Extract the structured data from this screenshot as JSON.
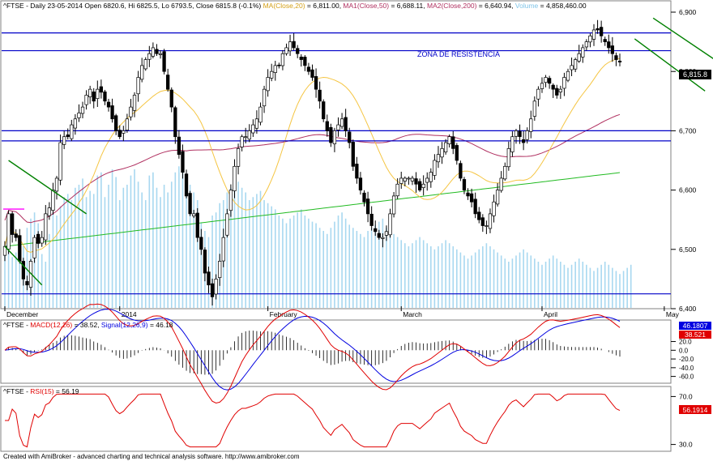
{
  "header": {
    "prefix": "^FTSE - Daily 23-05-2014 Open 6820.6, Hi 6825.5, Lo 6793.5, Close 6815.8 (-0.1%) ",
    "ma20": "MA(Close,20)",
    "ma20_val": " = 6,811.00, ",
    "ma50": "MA1(Close,50)",
    "ma50_val": " = 6,688.11, ",
    "ma200": "MA2(Close,200)",
    "ma200_val": " = 6,640.94, ",
    "volume": "Volume",
    "volume_val": " = 4,858,460.00"
  },
  "annotation": "ZONA DE RESISTÊNCIA",
  "last_price_label": "6,815.8",
  "macd_header": {
    "prefix": "^FTSE - ",
    "macd": "MACD(12,26)",
    "macd_val": " = 38.52, ",
    "signal": "Signal(12,26,9)",
    "signal_val": " = 46.18"
  },
  "macd_last": {
    "signal": "46.1807",
    "macd": "38.521"
  },
  "rsi_header": {
    "prefix": "^FTSE - ",
    "rsi": "RSI(15)",
    "rsi_val": " = 56.19"
  },
  "rsi_last": "56.1914",
  "footer": "Created with AmiBroker - advanced charting and technical analysis software. http://www.amibroker.com",
  "colors": {
    "up_candle": "#ffffff",
    "down_candle": "#000000",
    "ma20": "#f5c542",
    "ma50": "#b03060",
    "ma200": "#22bb22",
    "volume": "#a8d8f0",
    "hline": "#0000c8",
    "trend_green": "#008000",
    "magenta": "#ff00ff",
    "macd": "#e00000",
    "signal": "#0000e0",
    "rsi": "#e00000"
  },
  "chart_data": [
    {
      "type": "candlestick",
      "name": "price",
      "ylim": [
        6400,
        6900
      ],
      "y_ticks": [
        "6,400",
        "6,500",
        "6,600",
        "6,700",
        "6,800",
        "6,900"
      ],
      "x_tick_labels": [
        "December",
        "2014",
        "February",
        "March",
        "April",
        "May"
      ],
      "horizontal_levels": [
        6865,
        6835,
        6700,
        6683,
        6425
      ],
      "magenta_level": 6568,
      "trend_lines": [
        {
          "from": [
            1,
            6650
          ],
          "to": [
            22,
            6560
          ]
        },
        {
          "from": [
            0,
            6505
          ],
          "to": [
            10,
            6440
          ]
        },
        {
          "from": [
            175,
            6890
          ],
          "to": [
            194,
            6810
          ]
        },
        {
          "from": [
            170,
            6855
          ],
          "to": [
            189,
            6767
          ]
        }
      ],
      "close": [
        6505,
        6560,
        6525,
        6520,
        6480,
        6450,
        6440,
        6480,
        6520,
        6510,
        6520,
        6560,
        6570,
        6600,
        6620,
        6680,
        6690,
        6690,
        6710,
        6720,
        6730,
        6740,
        6760,
        6770,
        6750,
        6770,
        6765,
        6750,
        6740,
        6720,
        6700,
        6690,
        6700,
        6720,
        6740,
        6760,
        6790,
        6810,
        6820,
        6830,
        6840,
        6830,
        6830,
        6800,
        6770,
        6740,
        6690,
        6660,
        6630,
        6590,
        6560,
        6560,
        6520,
        6500,
        6460,
        6440,
        6420,
        6450,
        6480,
        6520,
        6560,
        6600,
        6640,
        6670,
        6690,
        6690,
        6700,
        6710,
        6720,
        6740,
        6770,
        6790,
        6800,
        6810,
        6810,
        6830,
        6840,
        6850,
        6840,
        6830,
        6820,
        6810,
        6800,
        6790,
        6770,
        6750,
        6720,
        6700,
        6680,
        6700,
        6710,
        6720,
        6700,
        6680,
        6640,
        6620,
        6600,
        6580,
        6560,
        6540,
        6530,
        6520,
        6520,
        6530,
        6560,
        6590,
        6610,
        6620,
        6620,
        6620,
        6620,
        6610,
        6600,
        6610,
        6620,
        6630,
        6650,
        6660,
        6670,
        6680,
        6690,
        6670,
        6650,
        6620,
        6600,
        6590,
        6580,
        6560,
        6550,
        6540,
        6540,
        6560,
        6580,
        6600,
        6620,
        6640,
        6670,
        6690,
        6700,
        6690,
        6680,
        6700,
        6720,
        6750,
        6770,
        6780,
        6790,
        6780,
        6770,
        6760,
        6770,
        6790,
        6800,
        6810,
        6820,
        6830,
        6840,
        6850,
        6860,
        6870,
        6870,
        6860,
        6850,
        6840,
        6830,
        6820,
        6815.8
      ],
      "volume_relative": [
        0.38,
        0.42,
        0.33,
        0.36,
        0.45,
        0.4,
        0.52,
        0.58,
        0.62,
        0.55,
        0.35,
        0.3,
        0.48,
        0.62,
        0.6,
        0.66,
        0.72,
        0.74,
        0.7,
        0.78,
        0.8,
        0.84,
        0.72,
        0.76,
        0.74,
        0.86,
        0.88,
        0.72,
        0.8,
        0.9,
        0.85,
        0.7,
        0.78,
        0.8,
        0.86,
        0.9,
        0.82,
        0.75,
        0.7,
        0.86,
        0.88,
        0.78,
        0.72,
        0.8,
        0.75,
        0.82,
        0.88,
        0.92,
        0.9,
        0.86,
        0.8,
        0.75,
        0.7,
        0.55,
        0.5,
        0.46,
        0.6,
        0.62,
        0.68,
        0.7,
        0.75,
        0.78,
        0.8,
        0.82,
        0.78,
        0.75,
        0.7,
        0.72,
        0.74,
        0.76,
        0.7,
        0.68,
        0.66,
        0.64,
        0.6,
        0.58,
        0.55,
        0.58,
        0.6,
        0.62,
        0.64,
        0.6,
        0.58,
        0.56,
        0.55,
        0.52,
        0.5,
        0.48,
        0.52,
        0.56,
        0.6,
        0.62,
        0.58,
        0.54,
        0.52,
        0.5,
        0.48,
        0.46,
        0.5,
        0.52,
        0.54,
        0.56,
        0.58,
        0.52,
        0.5,
        0.48,
        0.46,
        0.44,
        0.42,
        0.4,
        0.42,
        0.44,
        0.46,
        0.44,
        0.42,
        0.4,
        0.38,
        0.4,
        0.42,
        0.44,
        0.42,
        0.4,
        0.38,
        0.36,
        0.34,
        0.32,
        0.34,
        0.36,
        0.38,
        0.4,
        0.42,
        0.4,
        0.38,
        0.36,
        0.34,
        0.32,
        0.3,
        0.32,
        0.34,
        0.36,
        0.38,
        0.36,
        0.34,
        0.32,
        0.3,
        0.28,
        0.3,
        0.32,
        0.34,
        0.32,
        0.3,
        0.28,
        0.26,
        0.28,
        0.3,
        0.32,
        0.3,
        0.28,
        0.26,
        0.24,
        0.26,
        0.28,
        0.3,
        0.28,
        0.26,
        0.24,
        0.22,
        0.24,
        0.26,
        0.28
      ]
    },
    {
      "type": "line",
      "name": "macd",
      "ylim": [
        -70,
        60
      ],
      "y_ticks": [
        "-60.0",
        "-40.0",
        "-20.0",
        "0.0",
        "20.0"
      ],
      "series": [
        {
          "name": "MACD(12,26)"
        },
        {
          "name": "Signal(12,26,9)"
        }
      ]
    },
    {
      "type": "line",
      "name": "rsi",
      "ylim": [
        25,
        75
      ],
      "y_ticks": [
        "30.0",
        "70.0"
      ],
      "series": [
        {
          "name": "RSI(15)"
        }
      ]
    }
  ]
}
